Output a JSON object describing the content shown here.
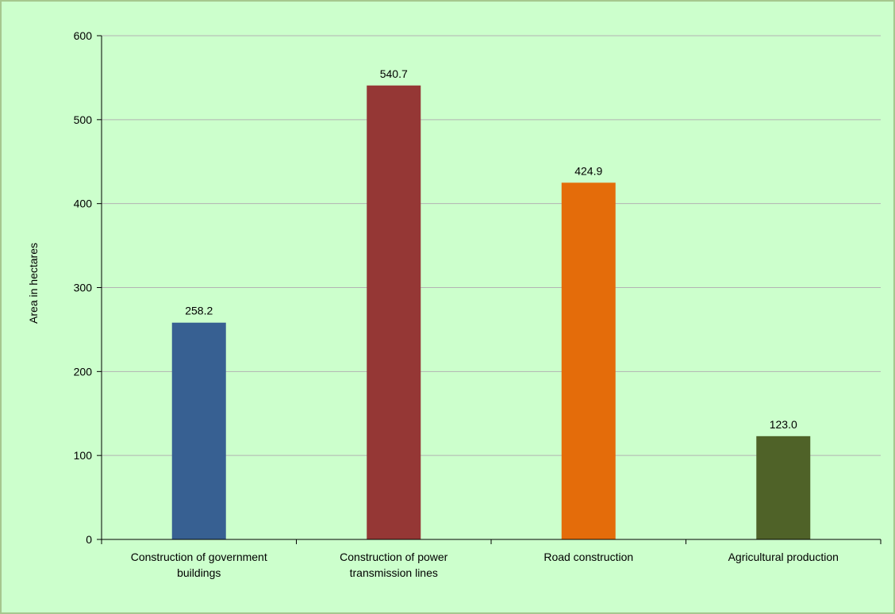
{
  "chart_data": {
    "type": "bar",
    "categories": [
      "Construction of government buildings",
      "Construction of power transmission lines",
      "Road construction",
      "Agricultural production"
    ],
    "category_label_lines": [
      [
        "Construction of government",
        "buildings"
      ],
      [
        "Construction of power",
        "transmission lines"
      ],
      [
        "Road construction"
      ],
      [
        "Agricultural production"
      ]
    ],
    "values": [
      258.2,
      540.7,
      424.9,
      123.0
    ],
    "value_labels": [
      "258.2",
      "540.7",
      "424.9",
      "123.0"
    ],
    "bar_colors": [
      "#376092",
      "#953735",
      "#e46c0a",
      "#4f6228"
    ],
    "ylabel": "Area in hectares",
    "xlabel": "",
    "title": "",
    "ylim": [
      0,
      600
    ],
    "yticks": [
      0,
      100,
      200,
      300,
      400,
      500,
      600
    ],
    "grid": true,
    "legend": "none",
    "background_color": "#ccffcc",
    "gridline_color": "#b3b3b3"
  }
}
